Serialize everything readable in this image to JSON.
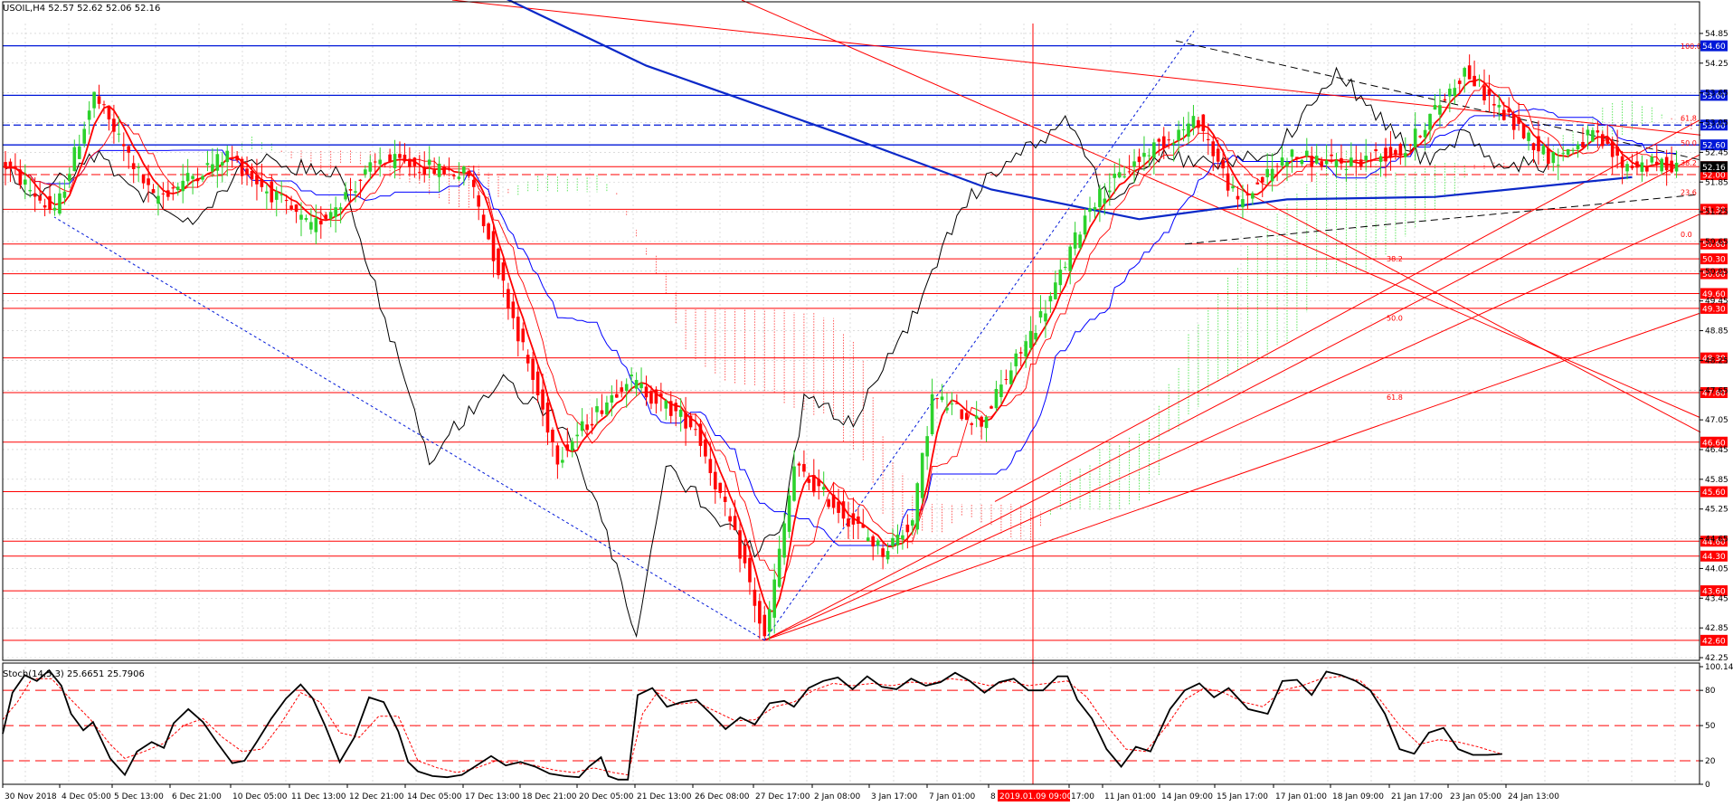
{
  "symbol_header": "USOIL,H4  52.57 52.62 52.06 52.16",
  "stoch_header": "Stoch(14,5,3) 25.6651 25.7906",
  "colors": {
    "bull": "#2cd22c",
    "bear": "#ff0000",
    "axis": "#000000",
    "grid": "#c8c8c8",
    "blue_line": "#0018d8",
    "ma_slow": "#0a28c8",
    "tenkan": "#0000ff",
    "chikou": "#000000",
    "cloud_red": "#ff2a2a",
    "cloud_green": "#2ee02e"
  },
  "chart_data": [
    {
      "type": "candlestick",
      "symbol": "USOIL",
      "timeframe": "H4",
      "ylim": [
        42.25,
        55.05
      ],
      "yticks": [
        "54.85",
        "54.25",
        "53.65",
        "53.05",
        "52.45",
        "51.85",
        "51.25",
        "50.65",
        "50.05",
        "49.45",
        "48.85",
        "48.25",
        "47.65",
        "47.05",
        "46.45",
        "45.85",
        "45.25",
        "44.65",
        "44.05",
        "43.45",
        "42.85",
        "42.25"
      ],
      "xlabels": [
        "30 Nov 2018",
        "4 Dec 05:00",
        "5 Dec 13:00",
        "6 Dec 21:00",
        "10 Dec 05:00",
        "11 Dec 13:00",
        "12 Dec 21:00",
        "14 Dec 05:00",
        "17 Dec 13:00",
        "18 Dec 21:00",
        "20 Dec 05:00",
        "21 Dec 13:00",
        "26 Dec 08:00",
        "27 Dec 17:00",
        "2 Jan 08:00",
        "3 Jan 17:00",
        "7 Jan 01:00",
        "8",
        "2019.01.09 09:00",
        "17:00",
        "11 Jan 01:00",
        "14 Jan 09:00",
        "15 Jan 17:00",
        "17 Jan 01:00",
        "18 Jan 09:00",
        "21 Jan 17:00",
        "23 Jan 05:00",
        "24 Jan 13:00"
      ],
      "cursor_label": "2019.01.09 09:00",
      "current_price": "52.16",
      "price_path": [
        [
          0,
          52.2
        ],
        [
          10,
          51.2
        ],
        [
          18,
          53.6
        ],
        [
          30,
          51.5
        ],
        [
          45,
          52.4
        ],
        [
          62,
          50.9
        ],
        [
          76,
          52.3
        ],
        [
          94,
          52.0
        ],
        [
          104,
          48.8
        ],
        [
          112,
          46.3
        ],
        [
          126,
          47.9
        ],
        [
          140,
          46.9
        ],
        [
          150,
          44.1
        ],
        [
          154,
          42.6
        ],
        [
          160,
          46.1
        ],
        [
          178,
          44.4
        ],
        [
          184,
          45.0
        ],
        [
          188,
          47.5
        ],
        [
          198,
          47.0
        ],
        [
          212,
          49.5
        ],
        [
          220,
          51.4
        ],
        [
          232,
          52.5
        ],
        [
          242,
          53.1
        ],
        [
          250,
          51.4
        ],
        [
          260,
          52.4
        ],
        [
          270,
          52.2
        ],
        [
          284,
          52.5
        ],
        [
          296,
          54.1
        ],
        [
          304,
          53.2
        ],
        [
          314,
          52.3
        ],
        [
          322,
          52.8
        ],
        [
          328,
          52.2
        ]
      ],
      "horizontal_levels": {
        "blue": [
          "54.60",
          "53.60",
          "53.00",
          "52.60"
        ],
        "red": [
          "52.16",
          "52.00",
          "51.30",
          "50.60",
          "50.30",
          "50.00",
          "49.60",
          "49.30",
          "48.30",
          "47.60",
          "46.60",
          "45.60",
          "44.60",
          "44.30",
          "43.60",
          "42.60"
        ]
      },
      "fibonacci_upper": [
        "100.0",
        "61.8",
        "50.0",
        "38.2",
        "23.6",
        "0.0"
      ],
      "fibonacci_lower": [
        "38.2",
        "50.0",
        "61.8"
      ]
    },
    {
      "type": "line",
      "name": "Stoch(14,5,3)",
      "ylim": [
        0,
        100.1445
      ],
      "yticks": [
        "100.1445",
        "80",
        "50",
        "20",
        "0"
      ],
      "levels": [
        80,
        50,
        20
      ],
      "main": [
        [
          0,
          43
        ],
        [
          4,
          78
        ],
        [
          9,
          93
        ],
        [
          14,
          88
        ],
        [
          19,
          97
        ],
        [
          24,
          84
        ],
        [
          28,
          60
        ],
        [
          33,
          46
        ],
        [
          37,
          53
        ],
        [
          44,
          22
        ],
        [
          50,
          8
        ],
        [
          55,
          28
        ],
        [
          61,
          36
        ],
        [
          66,
          31
        ],
        [
          70,
          52
        ],
        [
          76,
          64
        ],
        [
          82,
          53
        ],
        [
          88,
          35
        ],
        [
          94,
          18
        ],
        [
          99,
          20
        ],
        [
          104,
          36
        ],
        [
          110,
          56
        ],
        [
          116,
          73
        ],
        [
          122,
          85
        ],
        [
          127,
          73
        ],
        [
          132,
          50
        ],
        [
          138,
          19
        ],
        [
          144,
          40
        ],
        [
          150,
          74
        ],
        [
          156,
          70
        ],
        [
          162,
          45
        ],
        [
          166,
          19
        ],
        [
          170,
          11
        ],
        [
          176,
          7
        ],
        [
          182,
          6
        ],
        [
          188,
          8
        ],
        [
          194,
          16
        ],
        [
          200,
          24
        ],
        [
          206,
          16
        ],
        [
          212,
          19
        ],
        [
          218,
          15
        ],
        [
          224,
          9
        ],
        [
          230,
          7
        ],
        [
          236,
          6
        ],
        [
          240,
          15
        ],
        [
          245,
          23
        ],
        [
          248,
          7
        ],
        [
          252,
          4
        ],
        [
          256,
          4
        ],
        [
          260,
          76
        ],
        [
          266,
          82
        ],
        [
          272,
          66
        ],
        [
          278,
          70
        ],
        [
          284,
          72
        ],
        [
          290,
          60
        ],
        [
          296,
          47
        ],
        [
          302,
          57
        ],
        [
          308,
          51
        ],
        [
          314,
          69
        ],
        [
          320,
          71
        ],
        [
          324,
          66
        ],
        [
          330,
          82
        ],
        [
          336,
          88
        ],
        [
          342,
          91
        ],
        [
          348,
          81
        ],
        [
          354,
          92
        ],
        [
          360,
          83
        ],
        [
          366,
          81
        ],
        [
          372,
          90
        ],
        [
          378,
          84
        ],
        [
          384,
          87
        ],
        [
          390,
          95
        ],
        [
          396,
          88
        ],
        [
          402,
          78
        ],
        [
          408,
          87
        ],
        [
          414,
          90
        ],
        [
          420,
          80
        ],
        [
          426,
          80
        ],
        [
          432,
          92
        ],
        [
          436,
          92
        ],
        [
          440,
          72
        ],
        [
          446,
          56
        ],
        [
          452,
          30
        ],
        [
          458,
          15
        ],
        [
          464,
          32
        ],
        [
          470,
          28
        ],
        [
          478,
          64
        ],
        [
          484,
          80
        ],
        [
          490,
          86
        ],
        [
          496,
          74
        ],
        [
          502,
          82
        ],
        [
          510,
          64
        ],
        [
          518,
          60
        ],
        [
          524,
          88
        ],
        [
          530,
          89
        ],
        [
          536,
          76
        ],
        [
          542,
          96
        ],
        [
          548,
          93
        ],
        [
          554,
          88
        ],
        [
          560,
          80
        ],
        [
          566,
          60
        ],
        [
          572,
          30
        ],
        [
          578,
          26
        ],
        [
          584,
          44
        ],
        [
          590,
          48
        ],
        [
          596,
          30
        ],
        [
          602,
          25
        ],
        [
          608,
          25
        ],
        [
          614,
          25.7906
        ]
      ],
      "signal": [
        [
          0,
          55
        ],
        [
          6,
          70
        ],
        [
          12,
          90
        ],
        [
          20,
          90
        ],
        [
          28,
          72
        ],
        [
          36,
          55
        ],
        [
          44,
          34
        ],
        [
          50,
          22
        ],
        [
          58,
          28
        ],
        [
          66,
          35
        ],
        [
          74,
          50
        ],
        [
          82,
          56
        ],
        [
          90,
          40
        ],
        [
          98,
          28
        ],
        [
          106,
          30
        ],
        [
          114,
          52
        ],
        [
          122,
          78
        ],
        [
          130,
          70
        ],
        [
          138,
          44
        ],
        [
          146,
          40
        ],
        [
          154,
          58
        ],
        [
          162,
          58
        ],
        [
          170,
          20
        ],
        [
          178,
          14
        ],
        [
          186,
          10
        ],
        [
          194,
          14
        ],
        [
          202,
          20
        ],
        [
          210,
          18
        ],
        [
          218,
          16
        ],
        [
          226,
          12
        ],
        [
          234,
          10
        ],
        [
          242,
          14
        ],
        [
          250,
          10
        ],
        [
          256,
          8
        ],
        [
          262,
          60
        ],
        [
          268,
          78
        ],
        [
          276,
          68
        ],
        [
          284,
          70
        ],
        [
          292,
          62
        ],
        [
          300,
          54
        ],
        [
          308,
          55
        ],
        [
          316,
          66
        ],
        [
          324,
          70
        ],
        [
          332,
          80
        ],
        [
          340,
          86
        ],
        [
          348,
          84
        ],
        [
          356,
          86
        ],
        [
          364,
          84
        ],
        [
          372,
          87
        ],
        [
          380,
          86
        ],
        [
          388,
          90
        ],
        [
          396,
          88
        ],
        [
          404,
          84
        ],
        [
          412,
          88
        ],
        [
          420,
          84
        ],
        [
          428,
          86
        ],
        [
          436,
          88
        ],
        [
          444,
          74
        ],
        [
          452,
          50
        ],
        [
          460,
          30
        ],
        [
          468,
          28
        ],
        [
          476,
          48
        ],
        [
          484,
          72
        ],
        [
          492,
          82
        ],
        [
          500,
          78
        ],
        [
          508,
          70
        ],
        [
          516,
          66
        ],
        [
          524,
          80
        ],
        [
          532,
          84
        ],
        [
          540,
          90
        ],
        [
          548,
          92
        ],
        [
          556,
          88
        ],
        [
          564,
          72
        ],
        [
          572,
          50
        ],
        [
          580,
          34
        ],
        [
          588,
          38
        ],
        [
          596,
          36
        ],
        [
          604,
          32
        ],
        [
          614,
          25.6651
        ]
      ]
    }
  ]
}
